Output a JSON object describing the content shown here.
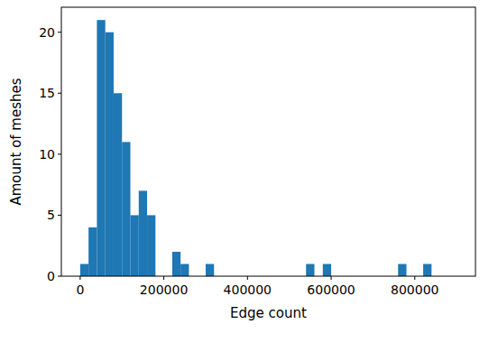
{
  "chart_data": {
    "type": "histogram",
    "x_label": "Edge count",
    "y_label": "Amount of meshes",
    "bins": [
      0,
      20000,
      40000,
      60000,
      80000,
      100000,
      120000,
      140000,
      160000,
      180000,
      200000,
      220000,
      240000,
      260000,
      280000,
      300000,
      320000,
      340000,
      360000,
      380000,
      400000,
      420000,
      440000,
      460000,
      480000,
      500000,
      520000,
      540000,
      560000,
      580000,
      600000,
      620000,
      640000,
      660000,
      680000,
      700000,
      720000,
      740000,
      760000,
      780000,
      800000,
      820000,
      840000,
      860000,
      880000,
      900000
    ],
    "values": [
      1,
      4,
      21,
      20,
      15,
      11,
      5,
      7,
      5,
      0,
      0,
      2,
      1,
      0,
      0,
      1,
      0,
      0,
      0,
      0,
      0,
      0,
      0,
      0,
      0,
      0,
      0,
      1,
      0,
      1,
      0,
      0,
      0,
      0,
      0,
      0,
      0,
      0,
      1,
      0,
      0,
      1,
      0,
      0,
      0
    ],
    "color": "#1f77b4",
    "xlim": [
      -45000,
      945000
    ],
    "xticks": [
      0,
      200000,
      400000,
      600000,
      800000
    ],
    "ylim": [
      0,
      22.05
    ],
    "yticks": [
      0,
      5,
      10,
      15,
      20
    ],
    "grid": false
  }
}
